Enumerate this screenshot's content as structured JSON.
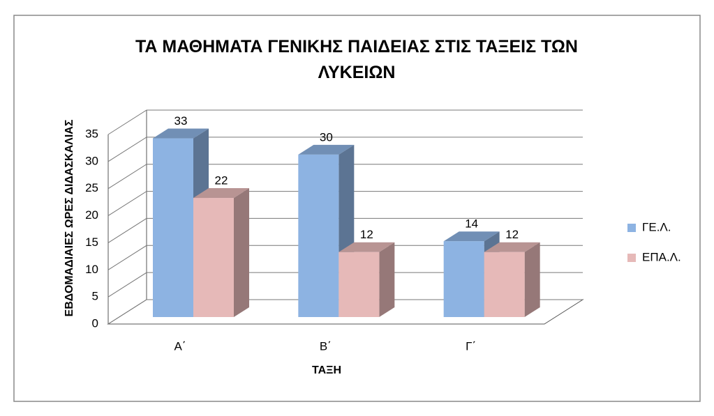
{
  "chart_data": {
    "type": "bar3d",
    "title": "ΤΑ ΜΑΘΗΜΑΤΑ ΓΕΝΙΚΗΣ ΠΑΙΔΕΙΑΣ ΣΤΙΣ ΤΑΞΕΙΣ ΤΩΝ ΛΥΚΕΙΩΝ",
    "x_label": "ΤΑΞΗ",
    "y_label": "ΕΒΔΟΜΑΔΙΑΙΕΣ ΩΡΕΣ ΔΙΔΑΣΚΑΛΙΑΣ",
    "categories": [
      "Α΄",
      "Β΄",
      "Γ΄"
    ],
    "series": [
      {
        "name": "ΓΕ.Λ.",
        "color": "#8db3e2",
        "values": [
          33,
          30,
          14
        ]
      },
      {
        "name": "ΕΠΑ.Λ.",
        "color": "#e6b9b8",
        "values": [
          22,
          12,
          12
        ]
      }
    ],
    "ylim": [
      0,
      35
    ],
    "yticks": [
      0,
      5,
      10,
      15,
      20,
      25,
      30,
      35
    ],
    "grid": true,
    "legend": "right"
  }
}
